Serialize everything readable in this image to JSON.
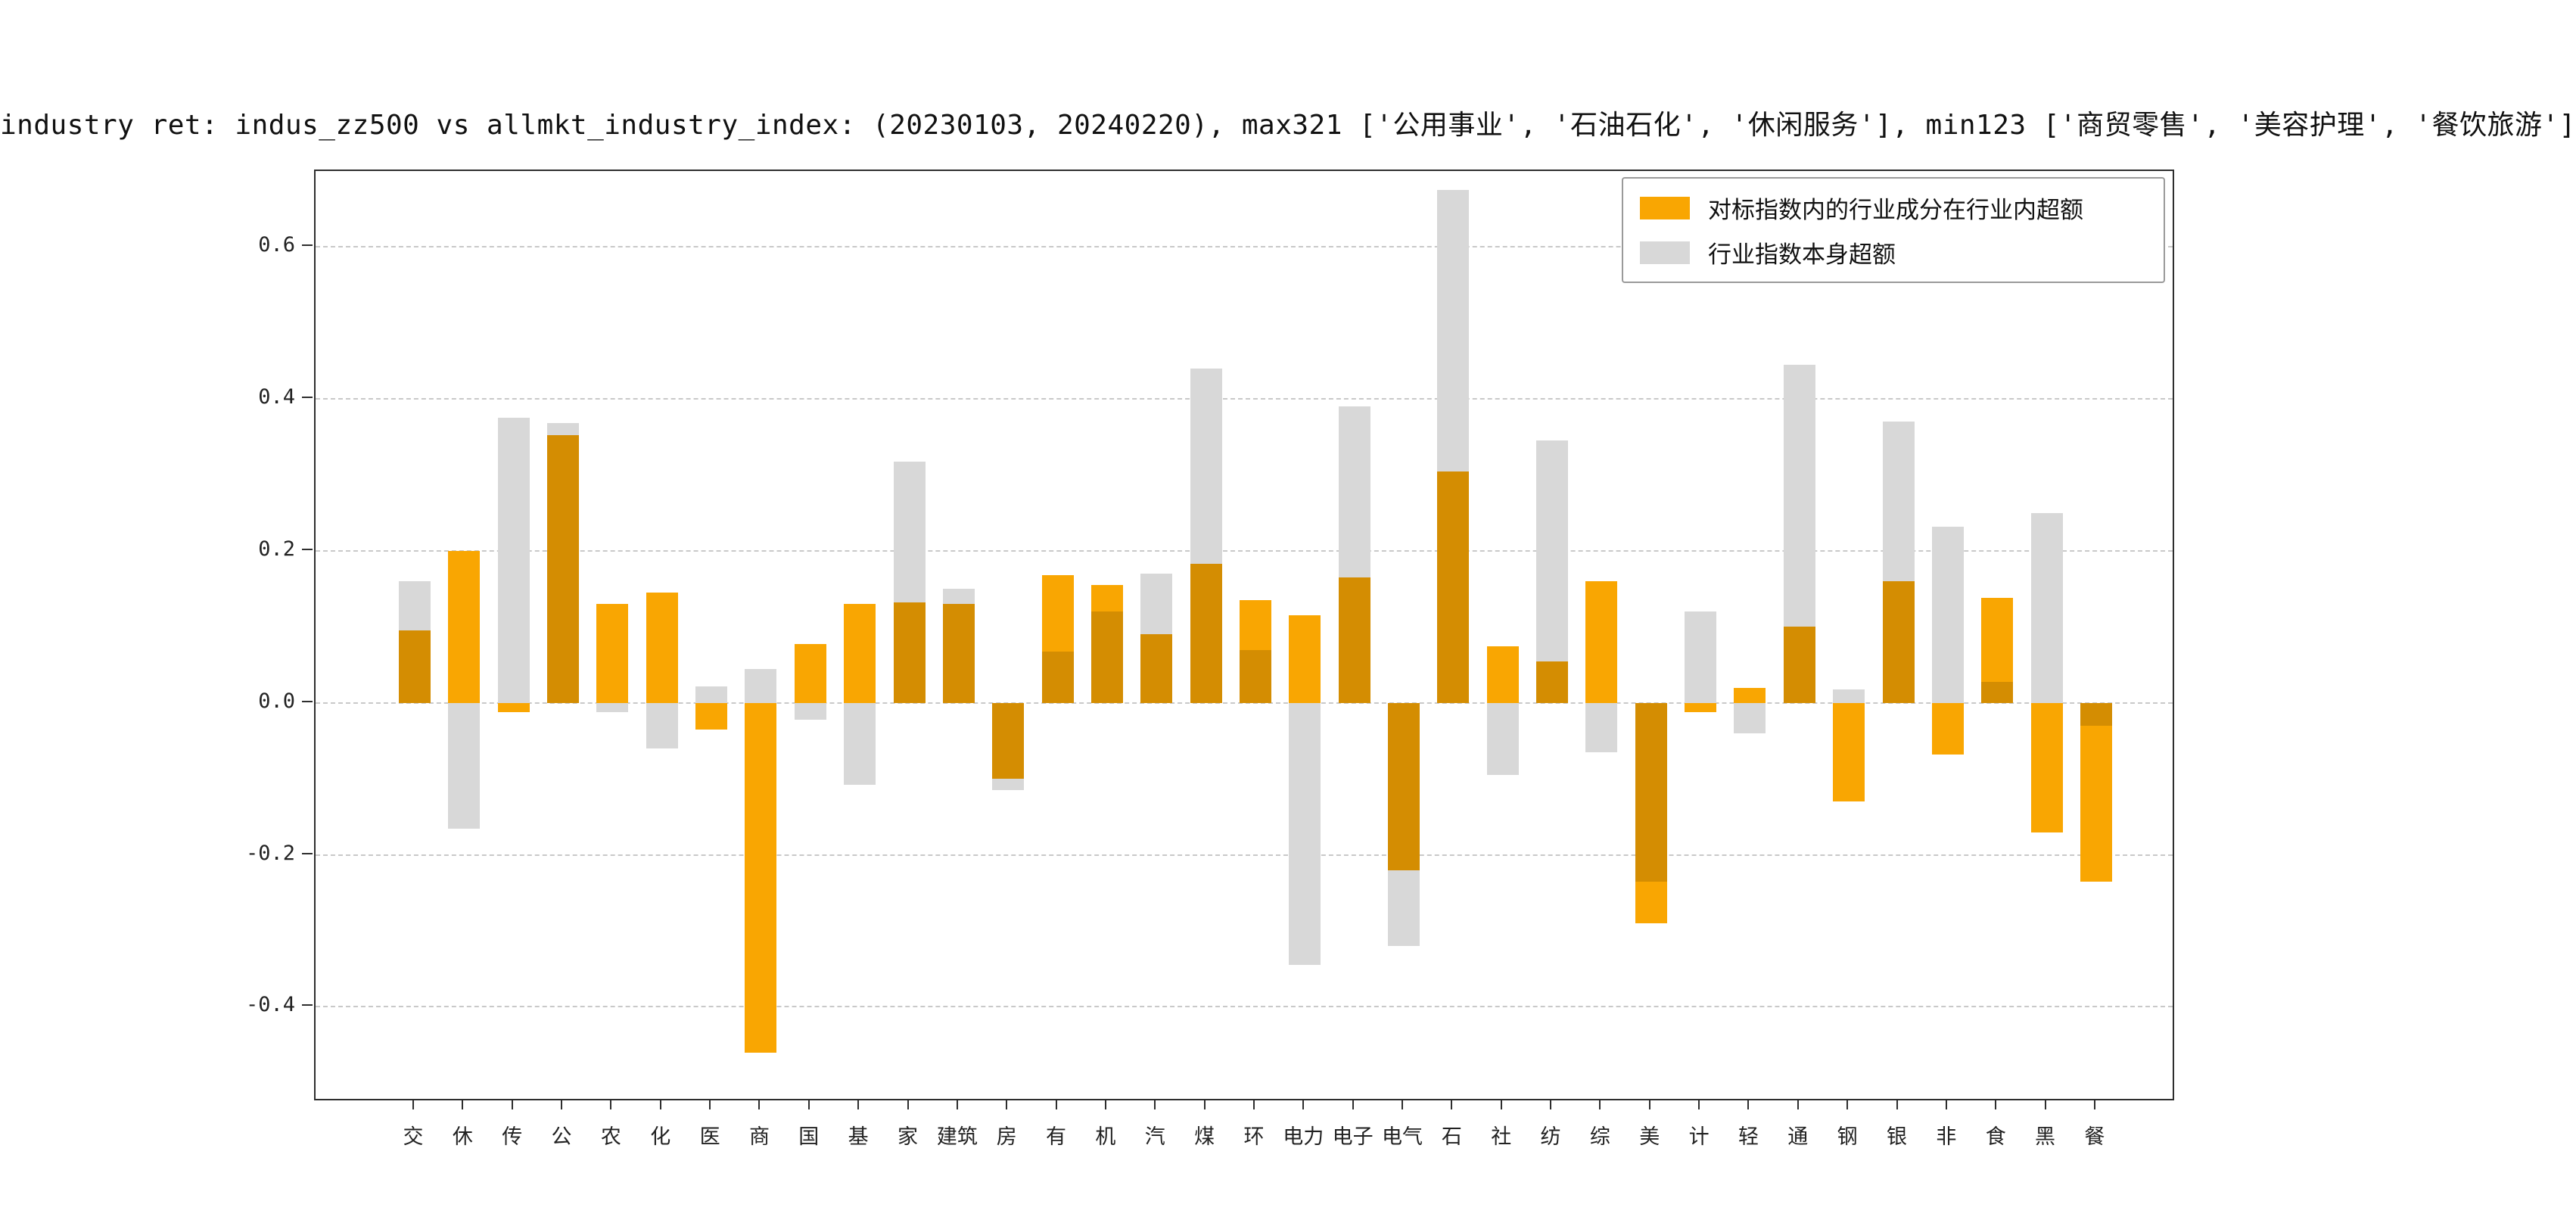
{
  "title": "industry ret: indus_zz500 vs allmkt_industry_index: (20230103, 20240220), max321 ['公用事业', '石油石化', '休闲服务'], min123 ['商贸零售', '美容护理', '餐饮旅游']",
  "colors": {
    "orange": "#f9a602",
    "gray": "#d8d8d8",
    "overlap": "#d48d02",
    "frame": "#2e2e2e",
    "grid": "#c9c9c9"
  },
  "chart_data": {
    "type": "bar",
    "title": "industry ret: indus_zz500 vs allmkt_industry_index: (20230103, 20240220), max321 ['公用事业', '石油石化', '休闲服务'], min123 ['商贸零售', '美容护理', '餐饮旅游']",
    "xlabel": "",
    "ylabel": "",
    "grid": "dashed-horizontal",
    "legend_position": "upper-right-inside",
    "ylim": [
      -0.525,
      0.7
    ],
    "yticks": [
      0.6,
      0.4,
      0.2,
      0.0,
      -0.2,
      -0.4
    ],
    "ytick_labels": [
      "0.6",
      "0.4",
      "0.2",
      "0.0",
      "-0.2",
      "-0.4"
    ],
    "categories": [
      "交",
      "休",
      "传",
      "公",
      "农",
      "化",
      "医",
      "商",
      "国",
      "基",
      "家",
      "建筑",
      "房",
      "有",
      "机",
      "汽",
      "煤",
      "环",
      "电力",
      "电子",
      "电气",
      "石",
      "社",
      "纺",
      "综",
      "美",
      "计",
      "轻",
      "通",
      "钢",
      "银",
      "非",
      "食",
      "黑",
      "餐"
    ],
    "overlap_color": "#d48d02",
    "series": [
      {
        "name": "对标指数内的行业成分在行业内超额",
        "color": "#f9a602",
        "values": [
          0.095,
          0.2,
          -0.012,
          0.352,
          0.13,
          0.145,
          -0.035,
          -0.46,
          0.078,
          0.13,
          0.132,
          0.13,
          -0.1,
          0.168,
          0.155,
          0.09,
          0.183,
          0.135,
          0.115,
          0.165,
          -0.22,
          0.305,
          0.075,
          0.055,
          0.16,
          -0.29,
          -0.012,
          0.02,
          0.1,
          -0.13,
          0.16,
          -0.068,
          0.138,
          -0.17,
          -0.235
        ]
      },
      {
        "name": "行业指数本身超额",
        "color": "#d8d8d8",
        "values": [
          0.16,
          -0.165,
          0.375,
          0.368,
          -0.012,
          -0.06,
          0.022,
          0.045,
          -0.022,
          -0.108,
          0.318,
          0.15,
          -0.115,
          0.068,
          0.12,
          0.17,
          0.44,
          0.07,
          -0.345,
          0.39,
          -0.32,
          0.675,
          -0.095,
          0.345,
          -0.065,
          -0.235,
          0.12,
          -0.04,
          0.445,
          0.018,
          0.37,
          0.232,
          0.028,
          0.25,
          -0.03
        ]
      }
    ]
  }
}
